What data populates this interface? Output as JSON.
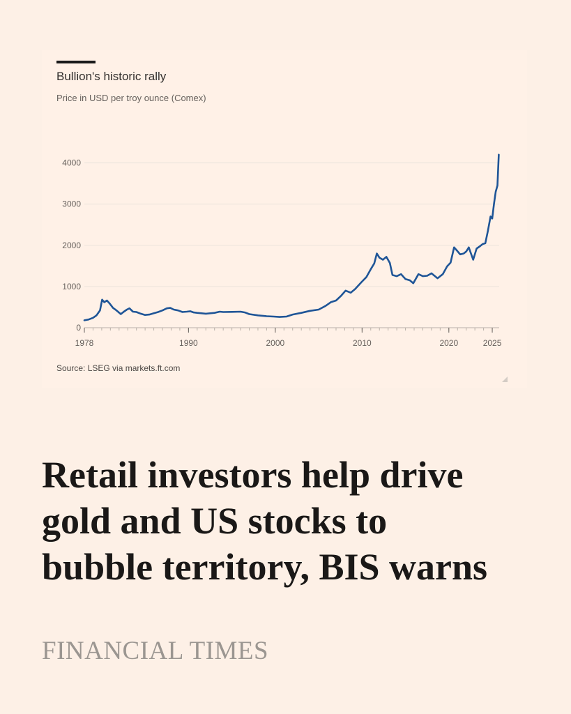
{
  "chart_card": {
    "title": "Bullion's historic rally",
    "subtitle": "Price in USD per troy ounce (Comex)",
    "source": "Source: LSEG via markets.ft.com"
  },
  "headline": {
    "lines": [
      "Retail investors help drive",
      "gold and US stocks to",
      "bubble territory, BIS warns"
    ]
  },
  "brand": "FINANCIAL TIMES",
  "colors": {
    "line": "#1f5597",
    "background": "#fdf0e6",
    "grid": "#ece4dc"
  },
  "chart_data": {
    "type": "line",
    "title": "Bullion's historic rally",
    "subtitle": "Price in USD per troy ounce (Comex)",
    "xlabel": "",
    "ylabel": "",
    "xlim": [
      1978,
      2025.8
    ],
    "ylim": [
      0,
      4400
    ],
    "x_ticks": [
      1978,
      1990,
      2000,
      2010,
      2020,
      2025
    ],
    "y_ticks": [
      0,
      1000,
      2000,
      3000,
      4000
    ],
    "grid": true,
    "series": [
      {
        "x": [
          1978,
          1978.5,
          1979,
          1979.4,
          1979.8,
          1980.05,
          1980.3,
          1980.6,
          1980.9,
          1981.3,
          1981.7,
          1982.2,
          1982.5,
          1982.9,
          1983.2,
          1983.6,
          1984,
          1984.5,
          1985,
          1985.5,
          1986,
          1986.5,
          1987,
          1987.5,
          1987.9,
          1988.3,
          1988.8,
          1989.3,
          1989.8,
          1990.2,
          1990.6,
          1991,
          1992,
          1993,
          1993.6,
          1994,
          1995,
          1996,
          1996.5,
          1997,
          1998,
          1999,
          1999.8,
          2000.5,
          2001.3,
          2002,
          2003,
          2004,
          2005,
          2005.8,
          2006.4,
          2007,
          2007.6,
          2008.1,
          2008.7,
          2009.2,
          2009.9,
          2010.5,
          2011,
          2011.4,
          2011.7,
          2012,
          2012.4,
          2012.8,
          2013.2,
          2013.5,
          2014,
          2014.5,
          2015,
          2015.5,
          2015.9,
          2016.5,
          2017,
          2017.5,
          2018,
          2018.7,
          2019.3,
          2019.8,
          2020.2,
          2020.6,
          2020.9,
          2021.3,
          2021.7,
          2022,
          2022.3,
          2022.8,
          2023.2,
          2023.6,
          2023.9,
          2024.2,
          2024.5,
          2024.8,
          2025,
          2025.2,
          2025.4,
          2025.6,
          2025.75
        ],
        "values": [
          180,
          200,
          240,
          300,
          420,
          680,
          620,
          660,
          590,
          480,
          420,
          330,
          380,
          440,
          470,
          390,
          380,
          340,
          310,
          320,
          350,
          380,
          420,
          470,
          480,
          440,
          420,
          380,
          390,
          400,
          370,
          360,
          340,
          360,
          390,
          380,
          385,
          390,
          370,
          330,
          300,
          280,
          270,
          260,
          270,
          320,
          360,
          410,
          440,
          530,
          620,
          660,
          780,
          900,
          850,
          940,
          1100,
          1230,
          1420,
          1560,
          1800,
          1700,
          1650,
          1720,
          1570,
          1280,
          1250,
          1300,
          1180,
          1150,
          1080,
          1300,
          1250,
          1260,
          1320,
          1200,
          1300,
          1490,
          1580,
          1950,
          1880,
          1780,
          1800,
          1850,
          1950,
          1650,
          1920,
          1980,
          2030,
          2050,
          2350,
          2700,
          2650,
          3000,
          3300,
          3450,
          4200
        ]
      }
    ]
  }
}
